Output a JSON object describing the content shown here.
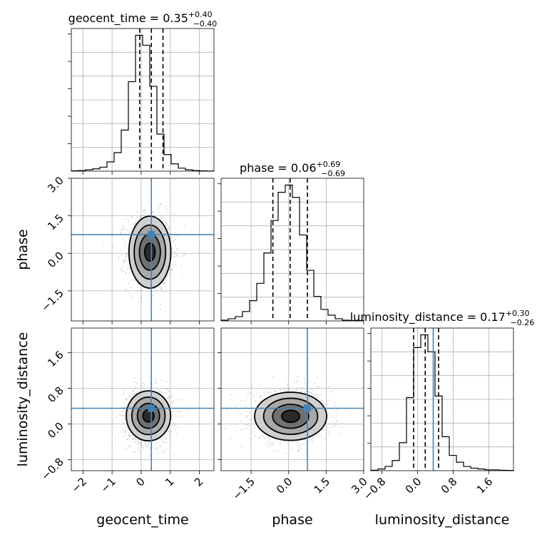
{
  "chart_data": {
    "type": "corner",
    "parameters": [
      {
        "key": "geocent_time",
        "label": "geocent_time",
        "title": "geocent_time = 0.35",
        "title_sup": "+0.40",
        "title_sub": "−0.40",
        "median": 0.35,
        "q_low": -0.05,
        "q_high": 0.75,
        "truth": 0.35,
        "range": [
          -2.4,
          2.5
        ],
        "ticks": [
          -2,
          -1,
          0,
          1,
          2
        ],
        "tick_labels": [
          "−2",
          "−1",
          "0",
          "1",
          "2"
        ],
        "hist_edges": [
          -2.4,
          -2.155,
          -1.91,
          -1.665,
          -1.42,
          -1.175,
          -0.93,
          -0.685,
          -0.44,
          -0.195,
          0.05,
          0.295,
          0.54,
          0.785,
          1.03,
          1.275,
          1.52,
          1.765,
          2.01,
          2.255,
          2.5
        ],
        "hist_counts": [
          0.5,
          1,
          2,
          3.5,
          6,
          14,
          28,
          62,
          135,
          205,
          190,
          128,
          56,
          25,
          11,
          4.5,
          2,
          1,
          0.4,
          0.2
        ]
      },
      {
        "key": "phase",
        "label": "phase",
        "title": "phase = 0.06",
        "title_sup": "+0.69",
        "title_sub": "−0.69",
        "median": 0.06,
        "q_low": -0.63,
        "q_high": 0.75,
        "truth": 0.75,
        "range": [
          -2.7,
          3.0
        ],
        "ticks": [
          -1.5,
          0.0,
          1.5,
          3.0
        ],
        "tick_labels": [
          "−1.5",
          "0.0",
          "1.5",
          "3.0"
        ],
        "hist_edges": [
          -2.7,
          -2.415,
          -2.13,
          -1.845,
          -1.56,
          -1.275,
          -0.99,
          -0.705,
          -0.42,
          -0.135,
          0.15,
          0.435,
          0.72,
          1.005,
          1.29,
          1.575,
          1.86,
          2.145,
          2.43,
          2.715,
          3.0
        ],
        "hist_counts": [
          1,
          3,
          6,
          13,
          28,
          52,
          94,
          139,
          178,
          188,
          171,
          119,
          70,
          34,
          16,
          8,
          3,
          1,
          0.5,
          0.5
        ]
      },
      {
        "key": "luminosity_distance",
        "label": "luminosity_distance",
        "title": "luminosity_distance = 0.17",
        "title_sup": "+0.30",
        "title_sub": "−0.26",
        "median": 0.17,
        "q_low": -0.09,
        "q_high": 0.47,
        "truth": 0.35,
        "range": [
          -1.05,
          2.15
        ],
        "ticks": [
          -0.8,
          0.0,
          0.8,
          1.6
        ],
        "tick_labels": [
          "−0.8",
          "0.0",
          "0.8",
          "1.6"
        ],
        "hist_edges": [
          -1.05,
          -0.89,
          -0.73,
          -0.57,
          -0.41,
          -0.25,
          -0.09,
          0.07,
          0.23,
          0.39,
          0.55,
          0.71,
          0.87,
          1.03,
          1.19,
          1.35,
          1.51,
          1.67,
          1.83,
          1.99,
          2.15
        ],
        "hist_counts": [
          0.5,
          2,
          5,
          12,
          33,
          86,
          145,
          160,
          140,
          88,
          40,
          18,
          10,
          5,
          3,
          2,
          1,
          1,
          0.5,
          0.3
        ]
      }
    ],
    "pairs": [
      {
        "row": 1,
        "col": 0,
        "x_mean": 0.3,
        "x_sd": 0.36,
        "y_mean": 0.05,
        "y_sd": 0.72
      },
      {
        "row": 2,
        "col": 0,
        "x_mean": 0.25,
        "x_sd": 0.38,
        "y_mean": 0.18,
        "y_sd": 0.28
      },
      {
        "row": 2,
        "col": 1,
        "x_mean": 0.08,
        "x_sd": 0.72,
        "y_mean": 0.17,
        "y_sd": 0.27
      }
    ],
    "grid": true,
    "colors": {
      "truth": "#4682b4",
      "lines": "#000000",
      "points": "#9a9a9a"
    }
  }
}
